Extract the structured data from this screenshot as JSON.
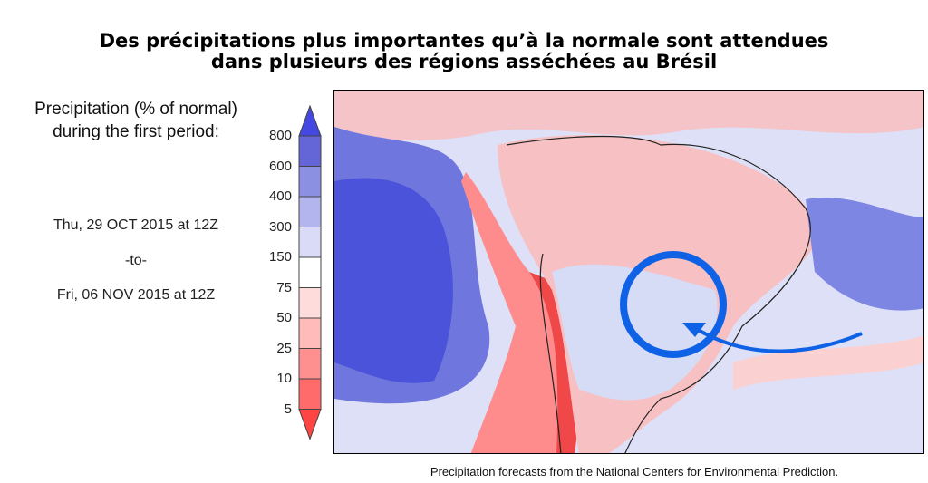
{
  "title": {
    "line1": "Des précipitations plus importantes qu’à la normale sont attendues",
    "line2": "dans plusieurs des régions asséchées au Brésil"
  },
  "legend": {
    "heading_line1": "Precipitation (% of normal)",
    "heading_line2": "during the first period:",
    "start": "Thu, 29 OCT 2015 at 12Z",
    "separator": "-to-",
    "end": "Fri, 06 NOV 2015 at 12Z",
    "ticks": [
      "800",
      "600",
      "400",
      "300",
      "150",
      "75",
      "50",
      "25",
      "10",
      "5"
    ],
    "colors": [
      "#4447e0",
      "#6466d8",
      "#8c90e2",
      "#b2b5ee",
      "#dadcf7",
      "#ffffff",
      "#ffdcdc",
      "#ffbaba",
      "#ff9090",
      "#ff6a6a",
      "#ff4444"
    ]
  },
  "map": {
    "highlight_color": "#0f62e6",
    "annotation": "circle-and-arrow highlighting southeastern Brazil"
  },
  "caption": "Precipitation forecasts from the National Centers for Environmental Prediction."
}
